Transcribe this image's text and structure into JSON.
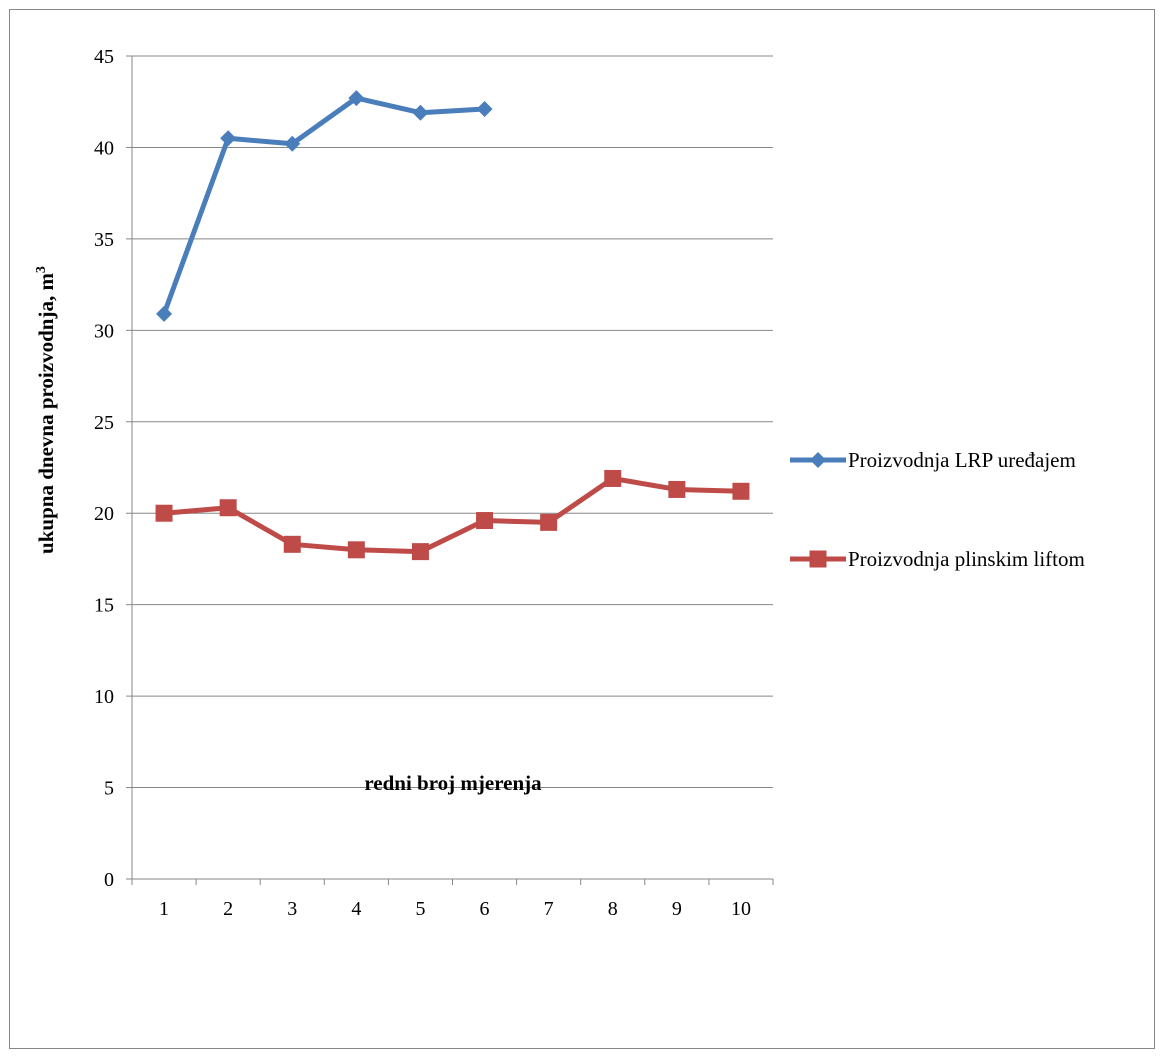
{
  "chart_data": {
    "type": "line",
    "title": "",
    "xlabel": "redni broj mjerenja",
    "ylabel": "ukupna dnevna proizvodnja, m",
    "ylabel_superscript": "3",
    "categories": [
      "1",
      "2",
      "3",
      "4",
      "5",
      "6",
      "7",
      "8",
      "9",
      "10"
    ],
    "ylim": [
      0,
      45
    ],
    "yticks": [
      "0",
      "5",
      "10",
      "15",
      "20",
      "25",
      "30",
      "35",
      "40",
      "45"
    ],
    "grid": true,
    "legend_position": "right",
    "series": [
      {
        "name": "Proizvodnja LRP uređajem",
        "color": "#4a7ebb",
        "marker": "diamond",
        "values": [
          30.9,
          40.5,
          40.2,
          42.7,
          41.9,
          42.1,
          null,
          null,
          null,
          null
        ]
      },
      {
        "name": "Proizvodnja plinskim liftom",
        "color": "#be4b48",
        "marker": "square",
        "values": [
          20.0,
          20.3,
          18.3,
          18.0,
          17.9,
          19.6,
          19.5,
          21.9,
          21.3,
          21.2
        ]
      }
    ]
  }
}
